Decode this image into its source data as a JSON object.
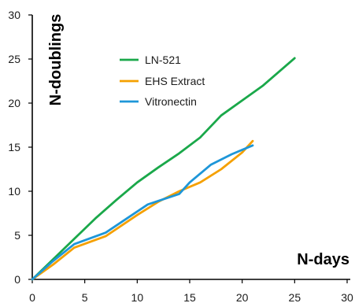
{
  "chart_data": {
    "type": "line",
    "title": "",
    "xlabel": "N-days",
    "ylabel": "N-doublings",
    "xlim": [
      0,
      30
    ],
    "ylim": [
      0,
      30
    ],
    "xticks": [
      0,
      5,
      10,
      15,
      20,
      25,
      30
    ],
    "yticks": [
      0,
      5,
      10,
      15,
      20,
      25,
      30
    ],
    "grid": false,
    "legend_position": "top-center",
    "series": [
      {
        "name": "LN-521",
        "color": "#1aa84a",
        "x": [
          0,
          2,
          4,
          6,
          8,
          10,
          12,
          14,
          16,
          18,
          20,
          22,
          25
        ],
        "y": [
          0,
          2.3,
          4.6,
          6.9,
          9.0,
          11.0,
          12.7,
          14.3,
          16.1,
          18.6,
          20.3,
          22.0,
          25.1
        ]
      },
      {
        "name": "EHS Extract",
        "color": "#f5a000",
        "x": [
          0,
          2,
          4,
          7,
          10,
          12,
          14,
          16,
          18,
          20,
          21
        ],
        "y": [
          0,
          1.7,
          3.6,
          4.9,
          7.3,
          8.8,
          10.0,
          11.0,
          12.5,
          14.4,
          15.7
        ]
      },
      {
        "name": "Vitronectin",
        "color": "#1e96d8",
        "x": [
          0,
          2,
          4,
          7,
          9,
          11,
          14,
          15,
          17,
          19,
          21
        ],
        "y": [
          0,
          2.1,
          4.0,
          5.3,
          6.9,
          8.5,
          9.7,
          11.0,
          13.0,
          14.2,
          15.2
        ]
      }
    ]
  }
}
